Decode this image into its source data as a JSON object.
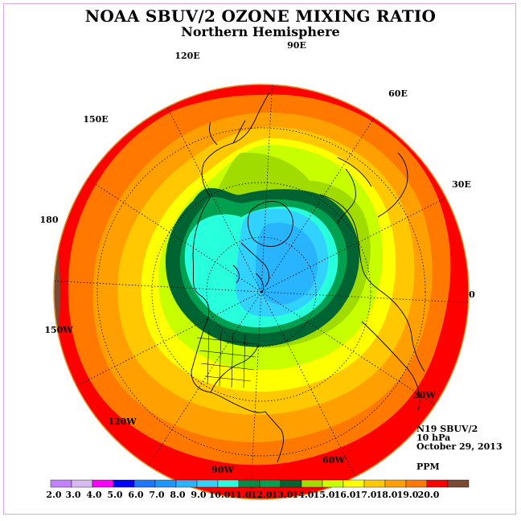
{
  "title": "NOAA SBUV/2 OZONE MIXING RATIO",
  "subtitle": "Northern Hemisphere",
  "meridian_labels": {
    "e120": "120E",
    "e90": "90E",
    "e60": "60E",
    "e30": "30E",
    "e150": "150E",
    "d180": "180",
    "d0": "0",
    "w150": "150W",
    "w120": "120W",
    "w90": "90W",
    "w60": "60W",
    "w30": "30W"
  },
  "info": {
    "satellite": "N19 SBUV/2",
    "level": "10 hPa",
    "date": "October 29, 2013",
    "unit": "PPM"
  },
  "colorbar": {
    "colors": [
      "#c080ff",
      "#d8b8f0",
      "#ff00ff",
      "#0000ff",
      "#1e78ff",
      "#1e96ff",
      "#28b4ff",
      "#32d2ff",
      "#28ffdc",
      "#008c46",
      "#00a050",
      "#006432",
      "#a0dc00",
      "#c8ff00",
      "#ffff00",
      "#ffc800",
      "#ffa000",
      "#ff7800",
      "#ff0000",
      "#7a4a32"
    ],
    "labels": [
      "2.0",
      "3.0",
      "4.0",
      "5.0",
      "6.0",
      "7.0",
      "8.0",
      "9.0",
      "10.0",
      "11.0",
      "12.0",
      "13.0",
      "14.0",
      "15.0",
      "16.0",
      "17.0",
      "18.0",
      "19.0",
      "20.0"
    ]
  },
  "map_colors": {
    "ocean_outer": "#ff0000",
    "band_18": "#ff7800",
    "band_17": "#ffa000",
    "band_16": "#ffc800",
    "band_15": "#ffff00",
    "band_14": "#c8ff00",
    "band_13": "#a0dc00",
    "band_12": "#006432",
    "band_11": "#00a050",
    "band_10": "#28ffdc",
    "band_9": "#32d2ff",
    "band_8": "#28b4ff",
    "band_20": "#7a4a32"
  }
}
